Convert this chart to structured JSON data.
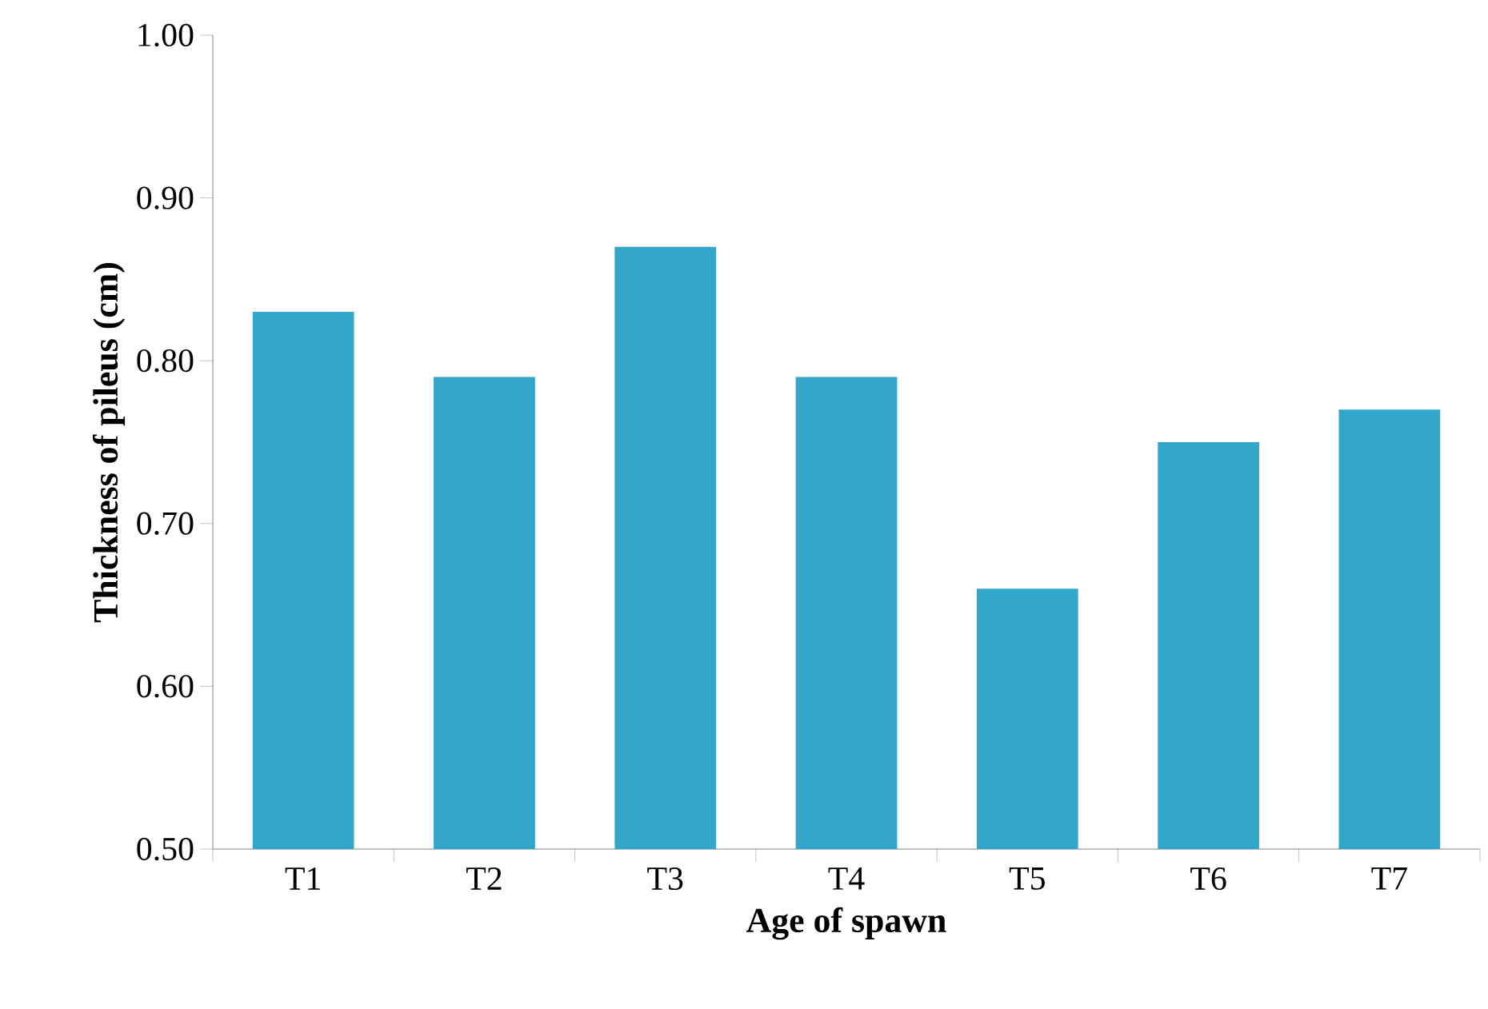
{
  "chart_data": {
    "type": "bar",
    "xlabel": "Age of spawn",
    "ylabel": "Thickness of pileus (cm)",
    "categories": [
      "T1",
      "T2",
      "T3",
      "T4",
      "T5",
      "T6",
      "T7"
    ],
    "values": [
      0.83,
      0.79,
      0.87,
      0.79,
      0.66,
      0.75,
      0.77
    ],
    "color": "#33a7c9",
    "ylim": [
      0.5,
      1.0
    ],
    "yticks": [
      {
        "value": 0.5,
        "label": "0.50"
      },
      {
        "value": 0.6,
        "label": "0.60"
      },
      {
        "value": 0.7,
        "label": "0.70"
      },
      {
        "value": 0.8,
        "label": "0.80"
      },
      {
        "value": 0.9,
        "label": "0.90"
      },
      {
        "value": 1.0,
        "label": "1.00"
      }
    ],
    "grid": false
  }
}
